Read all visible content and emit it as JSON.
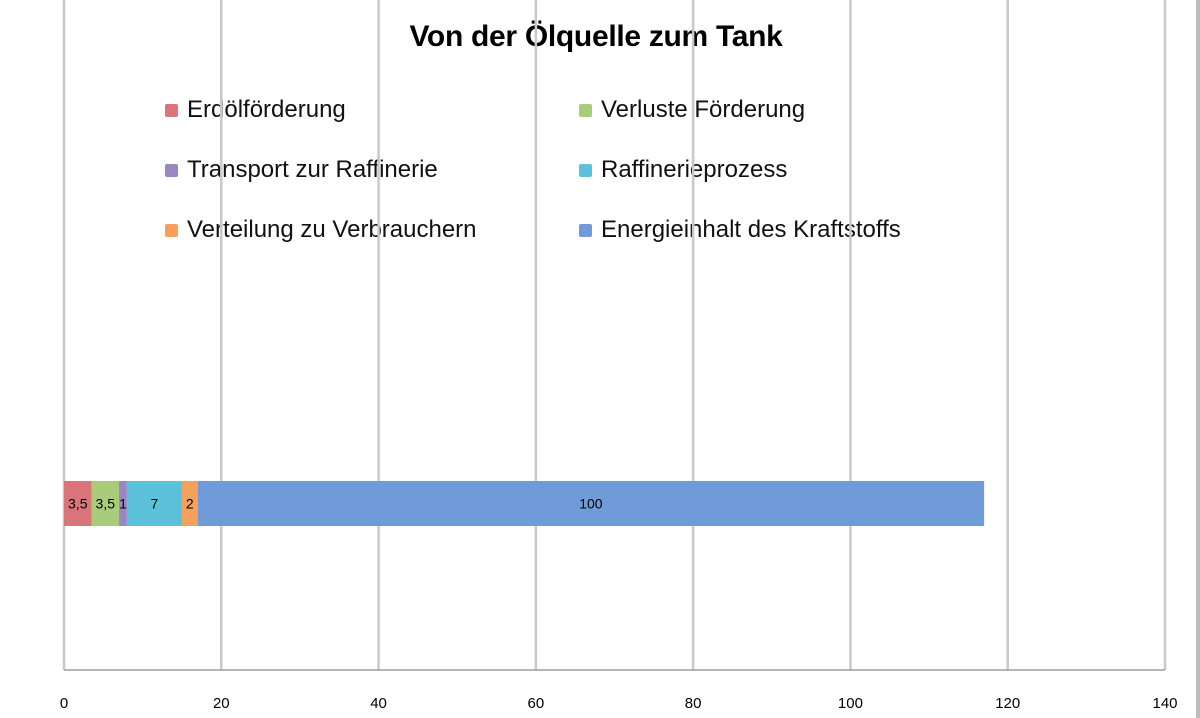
{
  "chart_data": {
    "type": "bar",
    "orientation": "horizontal",
    "stacked": true,
    "title": "Von der Ölquelle zum Tank",
    "xlabel": "",
    "ylabel": "",
    "xlim": [
      0,
      140
    ],
    "x_ticks": [
      "0",
      "20",
      "40",
      "60",
      "80",
      "100",
      "120",
      "140"
    ],
    "grid": "vertical major gridlines",
    "legend_position": "top",
    "categories": [
      ""
    ],
    "series": [
      {
        "name": "Erdölförderung",
        "values": [
          3.5
        ],
        "label": "3,5",
        "color": "#d9747a"
      },
      {
        "name": "Verluste Förderung",
        "values": [
          3.5
        ],
        "label": "3,5",
        "color": "#a9cc7a"
      },
      {
        "name": "Transport zur Raffinerie",
        "values": [
          1
        ],
        "label": "1",
        "color": "#9a87c0"
      },
      {
        "name": "Raffinerieprozess",
        "values": [
          7
        ],
        "label": "7",
        "color": "#5cc2dc"
      },
      {
        "name": "Verteilung zu Verbrauchern",
        "values": [
          2
        ],
        "label": "2",
        "color": "#f5a15c"
      },
      {
        "name": "Energieinhalt des Kraftstoffs",
        "values": [
          100
        ],
        "label": "100",
        "color": "#6f9bd8"
      }
    ]
  }
}
